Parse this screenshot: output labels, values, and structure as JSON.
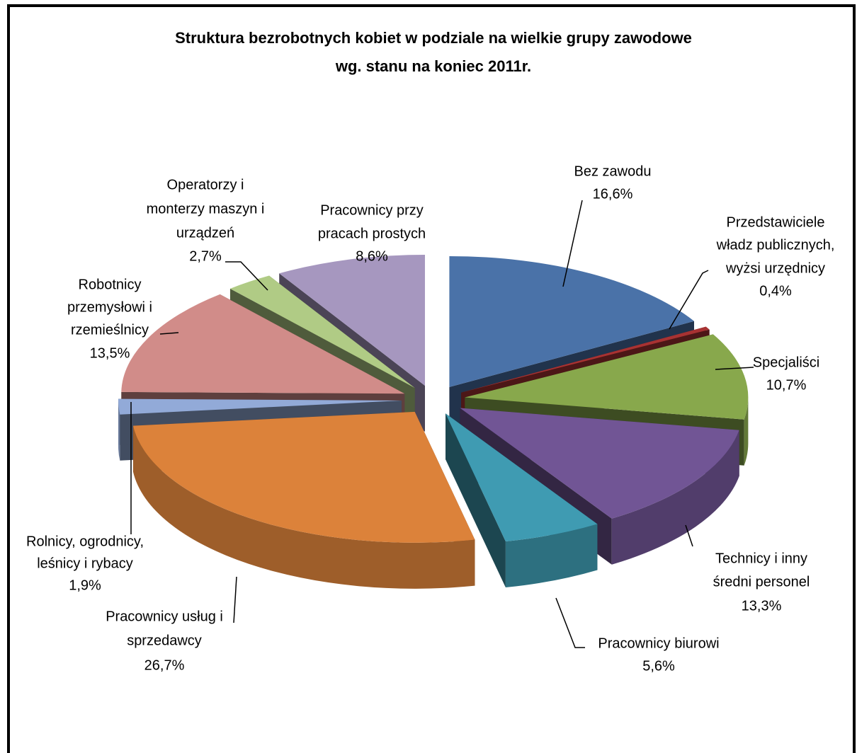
{
  "chart_data": {
    "type": "pie3d",
    "title": [
      "Struktura bezrobotnych kobiet  w podziale na wielkie grupy zawodowe",
      "wg. stanu na koniec 2011r."
    ],
    "categories": [
      [
        "Bez zawodu"
      ],
      [
        "Przedstawiciele",
        "władz publicznych,",
        "wyżsi urzędnicy"
      ],
      [
        "Specjaliści"
      ],
      [
        "Technicy i inny",
        "średni personel"
      ],
      [
        "Pracownicy biurowi"
      ],
      [
        "Pracownicy usług i",
        "sprzedawcy"
      ],
      [
        "Rolnicy, ogrodnicy,",
        "leśnicy i rybacy"
      ],
      [
        "Robotnicy",
        "przemysłowi i",
        "rzemieślnicy"
      ],
      [
        "Operatorzy i",
        "monterzy maszyn i",
        "urządzeń"
      ],
      [
        "Pracownicy przy",
        "pracach prostych"
      ]
    ],
    "values": [
      16.6,
      0.4,
      10.7,
      13.3,
      5.6,
      26.7,
      1.9,
      13.5,
      2.7,
      8.6
    ],
    "value_labels": [
      "16,6%",
      "0,4%",
      "10,7%",
      "13,3%",
      "5,6%",
      "26,7%",
      "1,9%",
      "13,5%",
      "2,7%",
      "8,6%"
    ],
    "colors": [
      "#4a72a8",
      "#a83232",
      "#88a84c",
      "#715595",
      "#3f9bb2",
      "#dc823a",
      "#92aad8",
      "#d18c89",
      "#b0cb85",
      "#a697bf"
    ]
  }
}
